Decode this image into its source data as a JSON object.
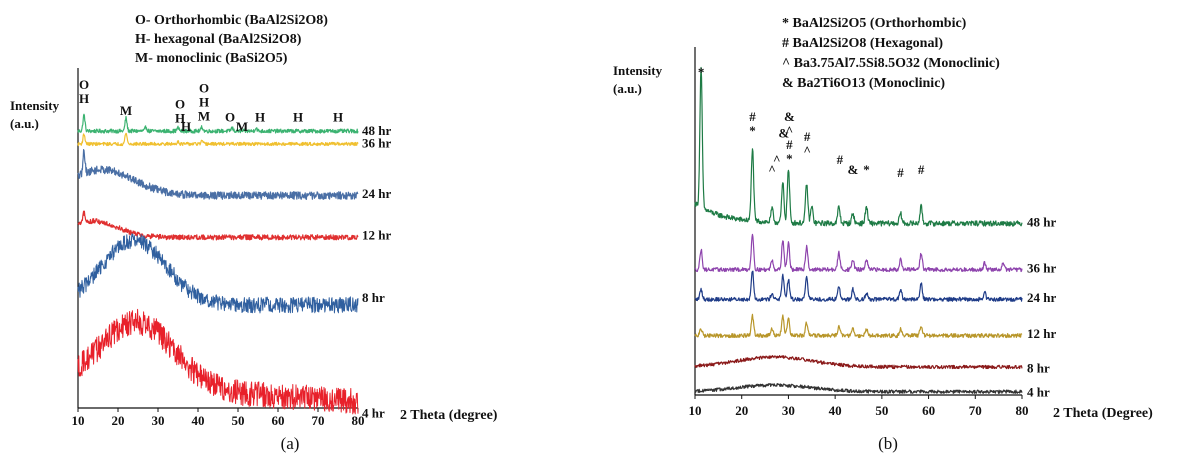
{
  "chart_data": [
    {
      "type": "line",
      "panel": "(a)",
      "legend": [
        "O- Orthorhombic (BaAl2Si2O8)",
        "H- hexagonal (BaAl2Si2O8)",
        "M- monoclinic (BaSi2O5)"
      ],
      "ylabel": [
        "Intensity",
        "(a.u.)"
      ],
      "xlabel": "2 Theta (degree)",
      "xlim": [
        10,
        80
      ],
      "x_ticks": [
        10,
        20,
        30,
        40,
        50,
        60,
        70,
        80
      ],
      "grid": false,
      "y_ticks": false,
      "series": [
        {
          "name": "48 hr",
          "color": "#3cb371",
          "amorphous": false,
          "y_offset": 0.86,
          "noise": 0.006,
          "peaks": [
            [
              11.5,
              0.05
            ],
            [
              22.0,
              0.04
            ],
            [
              27.0,
              0.012
            ],
            [
              35.0,
              0.01
            ],
            [
              41.0,
              0.012
            ],
            [
              48.5,
              0.01
            ],
            [
              54.5,
              0.01
            ]
          ]
        },
        {
          "name": "36 hr",
          "color": "#f0c030",
          "amorphous": false,
          "y_offset": 0.82,
          "noise": 0.005,
          "peaks": [
            [
              11.5,
              0.03
            ],
            [
              22.0,
              0.035
            ],
            [
              35.0,
              0.008
            ],
            [
              41.0,
              0.008
            ]
          ]
        },
        {
          "name": "24 hr",
          "color": "#4a6fa5",
          "amorphous": true,
          "y_offset": 0.66,
          "noise": 0.012,
          "hump": [
            16,
            0.08,
            8
          ],
          "peaks": [
            [
              11.5,
              0.07
            ]
          ]
        },
        {
          "name": "12 hr",
          "color": "#e03030",
          "amorphous": true,
          "y_offset": 0.53,
          "noise": 0.008,
          "hump": [
            14,
            0.05,
            6
          ],
          "peaks": [
            [
              11.5,
              0.03
            ]
          ]
        },
        {
          "name": "8 hr",
          "color": "#2f5f9f",
          "amorphous": true,
          "y_offset": 0.32,
          "noise": 0.025,
          "hump": [
            24,
            0.2,
            8
          ],
          "peaks": []
        },
        {
          "name": "4 hr",
          "color": "#e8202a",
          "amorphous": true,
          "y_offset": 0.02,
          "noise": 0.04,
          "hump": [
            25,
            0.2,
            9
          ],
          "slope": 0.06,
          "peaks": []
        }
      ],
      "peak_labels": [
        {
          "x": 11.5,
          "lines": [
            "O",
            "H"
          ],
          "level": 0.99
        },
        {
          "x": 22.0,
          "lines": [
            "M"
          ],
          "level": 0.91
        },
        {
          "x": 35.5,
          "lines": [
            "O",
            "H"
          ],
          "level": 0.93
        },
        {
          "x": 37.0,
          "lines": [
            "H"
          ],
          "level": 0.86
        },
        {
          "x": 41.5,
          "lines": [
            "O",
            "H",
            "M"
          ],
          "level": 0.98
        },
        {
          "x": 48.0,
          "lines": [
            "O"
          ],
          "level": 0.89
        },
        {
          "x": 51.0,
          "lines": [
            "M"
          ],
          "level": 0.86
        },
        {
          "x": 55.5,
          "lines": [
            "H"
          ],
          "level": 0.89
        },
        {
          "x": 65.0,
          "lines": [
            "H"
          ],
          "level": 0.89
        },
        {
          "x": 75.0,
          "lines": [
            "H"
          ],
          "level": 0.89
        }
      ],
      "caption": "(a)"
    },
    {
      "type": "line",
      "panel": "(b)",
      "legend": [
        "* BaAl2Si2O5 (Orthorhombic)",
        "# BaAl2Si2O8 (Hexagonal)",
        "^ Ba3.75Al7.5Si8.5O32 (Monoclinic)",
        "& Ba2Ti6O13 (Monoclinic)"
      ],
      "ylabel": [
        "Intensity",
        "(a.u.)"
      ],
      "xlabel": "2 Theta (Degree)",
      "xlim": [
        10,
        80
      ],
      "x_ticks": [
        10,
        20,
        30,
        40,
        50,
        60,
        70,
        80
      ],
      "grid": false,
      "y_ticks": false,
      "series": [
        {
          "name": "48 hr",
          "color": "#1e7b45",
          "amorphous": false,
          "y_offset": 0.52,
          "noise": 0.008,
          "decay": 0.06,
          "peaks": [
            [
              11.3,
              0.42
            ],
            [
              22.3,
              0.22
            ],
            [
              26.5,
              0.04
            ],
            [
              28.8,
              0.12
            ],
            [
              30.0,
              0.16
            ],
            [
              33.9,
              0.12
            ],
            [
              35.0,
              0.05
            ],
            [
              40.8,
              0.05
            ],
            [
              43.8,
              0.03
            ],
            [
              46.7,
              0.05
            ],
            [
              54.0,
              0.03
            ],
            [
              58.4,
              0.05
            ]
          ]
        },
        {
          "name": "36 hr",
          "color": "#8e44ad",
          "amorphous": false,
          "y_offset": 0.38,
          "noise": 0.006,
          "peaks": [
            [
              11.3,
              0.06
            ],
            [
              22.3,
              0.11
            ],
            [
              26.5,
              0.03
            ],
            [
              28.8,
              0.09
            ],
            [
              30.0,
              0.08
            ],
            [
              33.9,
              0.07
            ],
            [
              40.8,
              0.05
            ],
            [
              43.8,
              0.03
            ],
            [
              46.7,
              0.03
            ],
            [
              54.0,
              0.03
            ],
            [
              58.4,
              0.05
            ],
            [
              72.0,
              0.02
            ],
            [
              76.0,
              0.02
            ]
          ]
        },
        {
          "name": "24 hr",
          "color": "#1f3c88",
          "amorphous": false,
          "y_offset": 0.29,
          "noise": 0.006,
          "peaks": [
            [
              11.3,
              0.03
            ],
            [
              22.3,
              0.09
            ],
            [
              26.5,
              0.02
            ],
            [
              28.8,
              0.07
            ],
            [
              30.0,
              0.06
            ],
            [
              33.9,
              0.07
            ],
            [
              40.8,
              0.04
            ],
            [
              43.8,
              0.03
            ],
            [
              46.7,
              0.02
            ],
            [
              54.0,
              0.03
            ],
            [
              58.4,
              0.05
            ],
            [
              72.0,
              0.02
            ]
          ]
        },
        {
          "name": "12 hr",
          "color": "#b8962a",
          "amorphous": false,
          "y_offset": 0.18,
          "noise": 0.006,
          "peaks": [
            [
              11.3,
              0.02
            ],
            [
              22.3,
              0.06
            ],
            [
              26.5,
              0.02
            ],
            [
              28.8,
              0.06
            ],
            [
              30.0,
              0.05
            ],
            [
              33.9,
              0.04
            ],
            [
              40.8,
              0.03
            ],
            [
              43.8,
              0.02
            ],
            [
              46.7,
              0.02
            ],
            [
              54.0,
              0.02
            ],
            [
              58.4,
              0.03
            ]
          ]
        },
        {
          "name": "8 hr",
          "color": "#8b1a1a",
          "amorphous": true,
          "y_offset": 0.085,
          "noise": 0.005,
          "hump": [
            27,
            0.03,
            8
          ],
          "peaks": []
        },
        {
          "name": "4 hr",
          "color": "#333333",
          "amorphous": true,
          "y_offset": 0.01,
          "noise": 0.005,
          "hump": [
            27,
            0.02,
            8
          ],
          "peaks": []
        }
      ],
      "peak_labels": [
        {
          "x": 11.3,
          "lines": [
            "*"
          ],
          "level": 0.965
        },
        {
          "x": 22.3,
          "lines": [
            "#",
            "*"
          ],
          "level": 0.83
        },
        {
          "x": 26.5,
          "lines": [
            "^"
          ],
          "level": 0.67
        },
        {
          "x": 27.5,
          "lines": [
            "^"
          ],
          "level": 0.7
        },
        {
          "x": 29.0,
          "lines": [
            "&"
          ],
          "level": 0.78
        },
        {
          "x": 30.2,
          "lines": [
            "&",
            "^",
            "#",
            "*"
          ],
          "level": 0.83
        },
        {
          "x": 34.0,
          "lines": [
            "#",
            "^"
          ],
          "level": 0.77
        },
        {
          "x": 41.0,
          "lines": [
            "#"
          ],
          "level": 0.7
        },
        {
          "x": 43.8,
          "lines": [
            "&"
          ],
          "level": 0.67
        },
        {
          "x": 46.7,
          "lines": [
            "*"
          ],
          "level": 0.67
        },
        {
          "x": 54.0,
          "lines": [
            "#"
          ],
          "level": 0.66
        },
        {
          "x": 58.4,
          "lines": [
            "#"
          ],
          "level": 0.67
        }
      ],
      "caption": "(b)"
    }
  ]
}
